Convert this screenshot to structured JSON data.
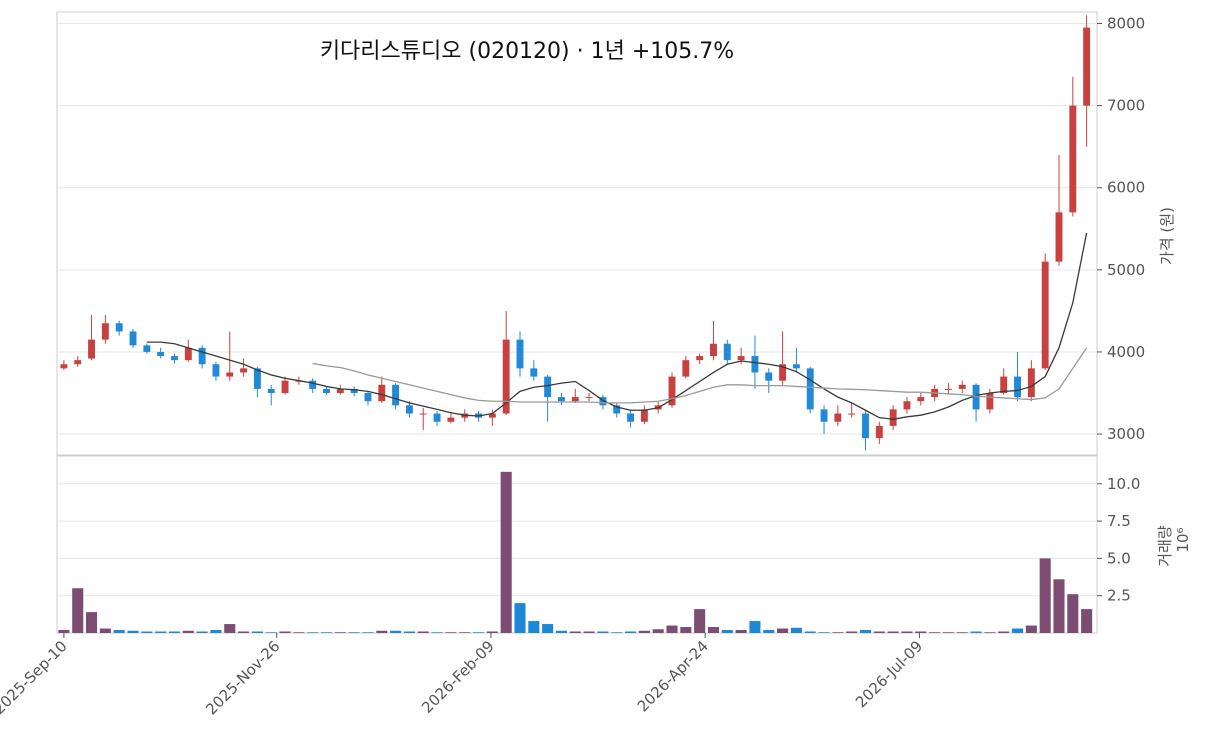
{
  "chart_data": [
    {
      "type": "candlestick",
      "title": "키다리스튜디오 (020120)  ·  1년 +105.7%",
      "ylabel": "가격 (원)",
      "open": [
        3800,
        3850,
        3920,
        4150,
        4350,
        4250,
        4080,
        4000,
        3950,
        3900,
        4050,
        3850,
        3700,
        3750,
        3800,
        3550,
        3500,
        3650,
        3650,
        3550,
        3500,
        3550,
        3500,
        3400,
        3600,
        3350,
        3250,
        3250,
        3150,
        3200,
        3250,
        3200,
        3250,
        4150,
        3800,
        3700,
        3450,
        3400,
        3450,
        3450,
        3350,
        3250,
        3150,
        3300,
        3350,
        3700,
        3900,
        3950,
        4100,
        3900,
        3950,
        3750,
        3650,
        3850,
        3800,
        3300,
        3150,
        3250,
        3250,
        2950,
        3100,
        3300,
        3400,
        3450,
        3550,
        3550,
        3600,
        3300,
        3500,
        3700,
        3450,
        3800,
        5100,
        5700,
        7000
      ],
      "high": [
        3900,
        3950,
        4450,
        4450,
        4380,
        4280,
        4100,
        4050,
        3980,
        4150,
        4080,
        3880,
        4250,
        3920,
        3820,
        3600,
        3700,
        3700,
        3680,
        3580,
        3600,
        3580,
        3520,
        3700,
        3620,
        3400,
        3320,
        3280,
        3250,
        3300,
        3280,
        3300,
        4500,
        4250,
        3900,
        3720,
        3500,
        3550,
        3500,
        3480,
        3380,
        3300,
        3350,
        3400,
        3750,
        3950,
        3980,
        4380,
        4150,
        4050,
        4200,
        3800,
        4250,
        4050,
        3820,
        3350,
        3350,
        3380,
        3280,
        3150,
        3350,
        3450,
        3500,
        3600,
        3620,
        3650,
        3620,
        3550,
        3800,
        4000,
        3900,
        5200,
        6400,
        7350,
        8100
      ],
      "low": [
        3780,
        3820,
        3900,
        4100,
        4200,
        4050,
        3980,
        3920,
        3860,
        3880,
        3800,
        3650,
        3650,
        3700,
        3450,
        3350,
        3480,
        3600,
        3500,
        3480,
        3480,
        3460,
        3350,
        3380,
        3300,
        3200,
        3050,
        3100,
        3130,
        3150,
        3150,
        3100,
        3230,
        3700,
        3650,
        3150,
        3350,
        3380,
        3400,
        3300,
        3200,
        3080,
        3120,
        3250,
        3320,
        3680,
        3850,
        3900,
        3850,
        3850,
        3550,
        3500,
        3600,
        3750,
        3250,
        3000,
        3100,
        3200,
        2800,
        2880,
        3050,
        3250,
        3350,
        3400,
        3480,
        3500,
        3150,
        3250,
        3480,
        3400,
        3400,
        3780,
        5050,
        5650,
        6500
      ],
      "close": [
        3850,
        3900,
        4150,
        4350,
        4250,
        4080,
        4000,
        3950,
        3900,
        4050,
        3850,
        3700,
        3750,
        3800,
        3550,
        3500,
        3650,
        3650,
        3550,
        3500,
        3550,
        3500,
        3400,
        3600,
        3350,
        3250,
        3250,
        3150,
        3200,
        3250,
        3200,
        3250,
        4150,
        3800,
        3700,
        3450,
        3400,
        3450,
        3450,
        3350,
        3250,
        3150,
        3300,
        3350,
        3700,
        3900,
        3950,
        4100,
        3900,
        3950,
        3750,
        3650,
        3850,
        3800,
        3300,
        3150,
        3250,
        3250,
        2950,
        3100,
        3300,
        3400,
        3450,
        3550,
        3550,
        3600,
        3300,
        3500,
        3700,
        3450,
        3800,
        5100,
        5700,
        7000,
        7950
      ],
      "moving_averages": [
        {
          "color": "#3a3a3a",
          "values": [
            null,
            null,
            null,
            null,
            null,
            null,
            4120,
            4120,
            4100,
            4050,
            4000,
            3950,
            3900,
            3850,
            3780,
            3720,
            3680,
            3650,
            3620,
            3580,
            3550,
            3540,
            3520,
            3480,
            3430,
            3380,
            3340,
            3300,
            3260,
            3230,
            3220,
            3250,
            3380,
            3520,
            3570,
            3590,
            3620,
            3640,
            3530,
            3410,
            3330,
            3290,
            3290,
            3320,
            3420,
            3530,
            3640,
            3750,
            3850,
            3890,
            3870,
            3850,
            3820,
            3760,
            3660,
            3550,
            3450,
            3380,
            3290,
            3200,
            3180,
            3210,
            3230,
            3270,
            3330,
            3410,
            3470,
            3500,
            3520,
            3530,
            3580,
            3700,
            4050,
            4600,
            5450
          ]
        },
        {
          "color": "#9a9a9a",
          "values": [
            null,
            null,
            null,
            null,
            null,
            null,
            null,
            null,
            null,
            null,
            null,
            null,
            null,
            null,
            null,
            null,
            null,
            null,
            3860,
            3830,
            3810,
            3770,
            3720,
            3680,
            3640,
            3600,
            3560,
            3520,
            3480,
            3440,
            3410,
            3400,
            3400,
            3390,
            3390,
            3390,
            3390,
            3390,
            3390,
            3380,
            3380,
            3380,
            3390,
            3400,
            3430,
            3470,
            3520,
            3570,
            3600,
            3600,
            3590,
            3590,
            3590,
            3580,
            3570,
            3560,
            3550,
            3545,
            3540,
            3530,
            3520,
            3510,
            3510,
            3500,
            3490,
            3480,
            3460,
            3450,
            3440,
            3430,
            3420,
            3440,
            3550,
            3800,
            4050
          ]
        }
      ],
      "up_color": "#c8413f",
      "down_color": "#2189d8",
      "xlim": [
        -0.5,
        74.75
      ],
      "ylim": [
        2745,
        8140
      ],
      "yticks": [
        3000,
        4000,
        5000,
        6000,
        7000,
        8000
      ],
      "grid": true
    },
    {
      "type": "bar",
      "ylabel": "거래량",
      "offset_text": "10⁶",
      "values": [
        0.2,
        3.0,
        1.4,
        0.3,
        0.2,
        0.15,
        0.1,
        0.1,
        0.1,
        0.15,
        0.1,
        0.2,
        0.6,
        0.1,
        0.1,
        0.05,
        0.1,
        0.05,
        0.05,
        0.05,
        0.05,
        0.05,
        0.05,
        0.15,
        0.15,
        0.1,
        0.1,
        0.05,
        0.05,
        0.05,
        0.05,
        0.1,
        10.8,
        2.0,
        0.8,
        0.6,
        0.15,
        0.1,
        0.1,
        0.1,
        0.05,
        0.1,
        0.15,
        0.25,
        0.5,
        0.4,
        1.6,
        0.4,
        0.2,
        0.2,
        0.8,
        0.2,
        0.3,
        0.35,
        0.1,
        0.05,
        0.05,
        0.1,
        0.2,
        0.1,
        0.1,
        0.1,
        0.1,
        0.05,
        0.05,
        0.05,
        0.1,
        0.05,
        0.1,
        0.3,
        0.5,
        5.0,
        3.6,
        2.6,
        1.6
      ],
      "up_color": "#7d4c73",
      "down_color": "#1f88d6",
      "xlim": [
        -0.5,
        74.75
      ],
      "xticks": [
        {
          "value": 0,
          "label": "2025-Sep-10"
        },
        {
          "value": 15.4,
          "label": "2025-Nov-26"
        },
        {
          "value": 30.9,
          "label": "2026-Feb-09"
        },
        {
          "value": 46.4,
          "label": "2026-Apr-24"
        },
        {
          "value": 61.9,
          "label": "2026-Jul-09"
        }
      ],
      "ylim": [
        0,
        11.86
      ],
      "yticks": [
        2.5,
        {
          "value": 5,
          "label": "5.0"
        },
        7.5,
        {
          "value": 10,
          "label": "10.0"
        }
      ],
      "grid": true
    }
  ]
}
